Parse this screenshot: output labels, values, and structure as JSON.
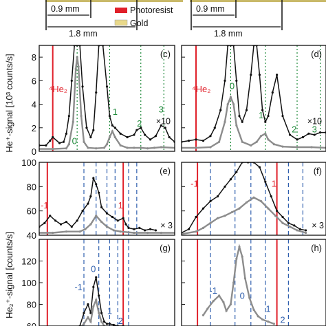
{
  "figure": {
    "legend": [
      {
        "label": "Photoresist",
        "color": "#e0202a"
      },
      {
        "label": "Gold",
        "color": "#e9d98a"
      }
    ],
    "dim_labels": [
      "0.9 mm",
      "1.8 mm"
    ],
    "ylabel_top": "He⁺-signal [10³ counts/s]",
    "ylabel_bottom": "He₂⁺-signal [counts/s]"
  },
  "colors": {
    "black": "#111111",
    "gray": "#8c8c8c",
    "red": "#e0202a",
    "green": "#1f8a3a",
    "blue": "#2f5fae"
  },
  "chart_data": [
    {
      "panel": "(c)",
      "type": "line",
      "ylim": [
        0,
        9
      ],
      "yticks": [
        0,
        2,
        4,
        6,
        8
      ],
      "red_lines": [
        0.1
      ],
      "red_label": "⁴He₂",
      "green_lines": [
        0.28,
        0.52,
        0.75,
        0.92
      ],
      "peak_labels": [
        {
          "text": "0",
          "x": 0.26,
          "y": 0.6
        },
        {
          "text": "1",
          "x": 0.56,
          "y": 3.1
        },
        {
          "text": "2",
          "x": 0.74,
          "y": 2.1
        },
        {
          "text": "3",
          "x": 0.9,
          "y": 3.3
        }
      ],
      "mult": "×10",
      "series": [
        {
          "color": "black",
          "x": [
            0.0,
            0.05,
            0.08,
            0.1,
            0.15,
            0.18,
            0.2,
            0.22,
            0.24,
            0.26,
            0.28,
            0.3,
            0.32,
            0.35,
            0.38,
            0.4,
            0.42,
            0.44,
            0.47,
            0.5,
            0.52,
            0.54,
            0.56,
            0.6,
            0.65,
            0.7,
            0.72,
            0.75,
            0.78,
            0.82,
            0.86,
            0.9,
            0.93,
            0.96,
            1.0
          ],
          "y": [
            0.5,
            0.5,
            0.9,
            1.2,
            0.7,
            0.8,
            1.5,
            3.0,
            6.0,
            9.0,
            9.0,
            9.0,
            5.5,
            2.0,
            1.2,
            1.8,
            5.0,
            9.0,
            9.0,
            5.5,
            3.0,
            2.2,
            2.0,
            1.5,
            1.2,
            1.4,
            1.8,
            2.0,
            1.4,
            1.0,
            1.3,
            2.2,
            2.0,
            1.2,
            0.8
          ]
        },
        {
          "color": "gray",
          "x": [
            0.0,
            0.1,
            0.2,
            0.22,
            0.25,
            0.27,
            0.28,
            0.29,
            0.31,
            0.33,
            0.36,
            0.42,
            0.48,
            0.5,
            0.52,
            0.54,
            0.56,
            0.6,
            0.65,
            0.7,
            0.75,
            0.8,
            0.85,
            0.9,
            1.0
          ],
          "y": [
            0.2,
            0.2,
            0.25,
            0.6,
            2.5,
            7.0,
            8.0,
            7.2,
            3.0,
            0.8,
            0.3,
            0.25,
            0.3,
            0.6,
            1.2,
            1.7,
            1.2,
            0.5,
            0.3,
            0.3,
            0.3,
            0.25,
            0.3,
            0.35,
            0.3
          ]
        }
      ]
    },
    {
      "panel": "(d)",
      "type": "line",
      "ylim": [
        0,
        9
      ],
      "yticks": [
        0,
        2,
        4,
        6,
        8
      ],
      "red_lines": [
        0.1
      ],
      "red_label": "⁴He₂",
      "green_lines": [
        0.34,
        0.58,
        0.8,
        0.96
      ],
      "peak_labels": [
        {
          "text": "0",
          "x": 0.35,
          "y": 5.3
        },
        {
          "text": "1",
          "x": 0.55,
          "y": 2.8
        },
        {
          "text": "2",
          "x": 0.78,
          "y": 1.6
        },
        {
          "text": "3",
          "x": 0.92,
          "y": 1.6
        }
      ],
      "mult": "×10",
      "series": [
        {
          "color": "black",
          "x": [
            0.0,
            0.05,
            0.1,
            0.15,
            0.2,
            0.23,
            0.27,
            0.3,
            0.32,
            0.34,
            0.36,
            0.38,
            0.4,
            0.42,
            0.45,
            0.48,
            0.5,
            0.52,
            0.54,
            0.56,
            0.58,
            0.6,
            0.63,
            0.66,
            0.7,
            0.75,
            0.8,
            0.84,
            0.88,
            0.92,
            0.96,
            1.0
          ],
          "y": [
            0.8,
            0.9,
            1.0,
            0.9,
            1.3,
            2.0,
            3.5,
            6.0,
            9.0,
            9.0,
            9.0,
            6.0,
            3.0,
            2.5,
            3.5,
            6.5,
            9.0,
            9.0,
            6.5,
            3.5,
            2.5,
            3.0,
            5.0,
            6.5,
            3.0,
            1.4,
            1.0,
            1.2,
            1.5,
            1.4,
            1.6,
            1.6
          ]
        },
        {
          "color": "gray",
          "x": [
            0.0,
            0.1,
            0.2,
            0.26,
            0.3,
            0.32,
            0.34,
            0.36,
            0.38,
            0.42,
            0.48,
            0.52,
            0.55,
            0.58,
            0.6,
            0.64,
            0.7,
            0.8,
            0.9,
            1.0
          ],
          "y": [
            0.3,
            0.3,
            0.35,
            0.8,
            2.5,
            4.0,
            4.6,
            4.0,
            2.2,
            0.8,
            0.5,
            0.8,
            1.3,
            1.5,
            1.0,
            0.6,
            0.4,
            0.35,
            0.35,
            0.3
          ]
        }
      ]
    },
    {
      "panel": "(e)",
      "type": "line",
      "ylim": [
        40,
        100
      ],
      "yticks": [
        40,
        60,
        80,
        100
      ],
      "red_lines": [
        0.06,
        0.62
      ],
      "red_labels": [
        {
          "text": "-1",
          "x": 0.04,
          "y": 62
        },
        {
          "text": "1",
          "x": 0.6,
          "y": 62
        }
      ],
      "blue_lines": [
        0.33,
        0.42,
        0.5,
        0.56,
        0.66,
        0.72
      ],
      "peak_labels": [],
      "mult": "× 3",
      "series": [
        {
          "color": "black",
          "x": [
            0.0,
            0.04,
            0.08,
            0.12,
            0.16,
            0.2,
            0.24,
            0.28,
            0.32,
            0.36,
            0.38,
            0.4,
            0.42,
            0.44,
            0.46,
            0.5,
            0.54,
            0.58,
            0.62,
            0.64,
            0.66,
            0.7,
            0.74,
            0.78,
            0.82,
            0.86
          ],
          "y": [
            47,
            50,
            56,
            52,
            49,
            51,
            47,
            52,
            60,
            66,
            72,
            87,
            82,
            75,
            63,
            58,
            55,
            52,
            54,
            49,
            46,
            45,
            46,
            44,
            45,
            44
          ]
        },
        {
          "color": "gray",
          "x": [
            0.0,
            0.1,
            0.2,
            0.3,
            0.34,
            0.38,
            0.42,
            0.46,
            0.5,
            0.55,
            0.6,
            0.7,
            0.8,
            0.9,
            1.0
          ],
          "y": [
            42,
            42,
            43,
            43,
            45,
            49,
            56,
            51,
            47,
            44,
            43,
            42,
            42,
            42,
            42
          ]
        }
      ]
    },
    {
      "panel": "(f)",
      "type": "line",
      "ylim": [
        40,
        100
      ],
      "yticks": [
        40,
        60,
        80,
        100
      ],
      "red_lines": [
        0.11,
        0.66
      ],
      "red_labels": [
        {
          "text": "-1",
          "x": 0.09,
          "y": 80
        },
        {
          "text": "1",
          "x": 0.64,
          "y": 80
        }
      ],
      "blue_lines": [
        0.2,
        0.37,
        0.48,
        0.58,
        0.74,
        0.84
      ],
      "peak_labels": [],
      "mult": "× 3",
      "series": [
        {
          "color": "black",
          "x": [
            0.0,
            0.05,
            0.1,
            0.15,
            0.2,
            0.25,
            0.3,
            0.34,
            0.38,
            0.42,
            0.46,
            0.5,
            0.54,
            0.58,
            0.62,
            0.66,
            0.7,
            0.74,
            0.78,
            0.82,
            0.86
          ],
          "y": [
            42,
            45,
            55,
            62,
            68,
            72,
            80,
            86,
            92,
            100,
            100,
            100,
            96,
            84,
            72,
            60,
            55,
            50,
            48,
            45,
            44
          ]
        },
        {
          "color": "gray",
          "x": [
            0.0,
            0.1,
            0.15,
            0.2,
            0.25,
            0.3,
            0.35,
            0.4,
            0.45,
            0.5,
            0.55,
            0.6,
            0.65,
            0.7,
            0.75,
            0.8,
            0.86
          ],
          "y": [
            41,
            43,
            46,
            50,
            54,
            56,
            59,
            62,
            67,
            71,
            68,
            62,
            56,
            50,
            47,
            44,
            42
          ]
        }
      ]
    },
    {
      "panel": "(g)",
      "type": "line",
      "ylim": [
        60,
        140
      ],
      "yticks": [
        60,
        80,
        100,
        120
      ],
      "red_lines": [
        0.06,
        0.62
      ],
      "blue_lines": [
        0.33,
        0.44,
        0.52,
        0.58,
        0.66
      ],
      "peak_labels": [
        {
          "text": "-1",
          "x": 0.29,
          "y": 93
        },
        {
          "text": "0",
          "x": 0.4,
          "y": 110
        },
        {
          "text": "1",
          "x": 0.52,
          "y": 71
        },
        {
          "text": "2",
          "x": 0.6,
          "y": 62
        }
      ],
      "mult": "",
      "series": [
        {
          "color": "black",
          "x": [
            0.3,
            0.33,
            0.36,
            0.38,
            0.4,
            0.42,
            0.44,
            0.46,
            0.48,
            0.5,
            0.52,
            0.55,
            0.58,
            0.62
          ],
          "y": [
            60,
            72,
            80,
            72,
            96,
            105,
            88,
            72,
            64,
            62,
            62,
            61,
            60,
            60
          ]
        },
        {
          "color": "gray",
          "x": [
            0.3,
            0.33,
            0.36,
            0.38,
            0.4,
            0.42,
            0.44,
            0.46,
            0.48,
            0.5
          ],
          "y": [
            58,
            62,
            68,
            64,
            78,
            84,
            72,
            64,
            60,
            58
          ]
        }
      ]
    },
    {
      "panel": "(h)",
      "type": "line",
      "ylim": [
        60,
        140
      ],
      "yticks": [
        60,
        80,
        100,
        120
      ],
      "red_lines": [
        0.11,
        0.66
      ],
      "blue_lines": [
        0.2,
        0.37,
        0.48,
        0.58,
        0.66,
        0.74
      ],
      "peak_labels": [
        {
          "text": "-1",
          "x": 0.22,
          "y": 90
        },
        {
          "text": "0",
          "x": 0.42,
          "y": 85
        },
        {
          "text": "1",
          "x": 0.6,
          "y": 73
        },
        {
          "text": "2",
          "x": 0.7,
          "y": 63
        }
      ],
      "mult": "",
      "series": [
        {
          "color": "gray",
          "x": [
            0.15,
            0.18,
            0.22,
            0.26,
            0.29,
            0.31,
            0.34,
            0.36,
            0.38,
            0.4,
            0.42,
            0.44,
            0.47,
            0.5,
            0.53,
            0.56,
            0.6,
            0.64
          ],
          "y": [
            70,
            76,
            83,
            88,
            82,
            74,
            80,
            100,
            122,
            133,
            124,
            104,
            86,
            75,
            69,
            66,
            64,
            62
          ]
        }
      ]
    }
  ]
}
